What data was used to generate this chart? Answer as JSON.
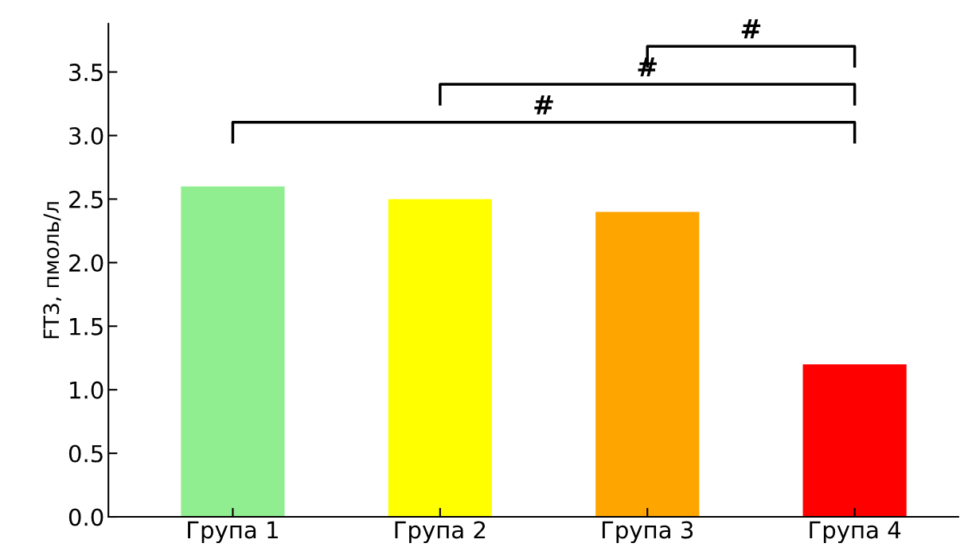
{
  "chart_data": {
    "type": "bar",
    "categories": [
      "Група 1",
      "Група 2",
      "Група 3",
      "Група 4"
    ],
    "values": [
      2.6,
      2.5,
      2.4,
      1.2
    ],
    "colors": [
      "#90ee90",
      "#ffff00",
      "#ffa500",
      "#ff0000"
    ],
    "ylabel": "FT3, пмоль/л",
    "ylim": [
      0,
      3.88
    ],
    "yticks": [
      {
        "value": 0,
        "label": "0.0"
      },
      0.5,
      {
        "value": 1,
        "label": "1.0"
      },
      1.5,
      {
        "value": 2,
        "label": "2.0"
      },
      2.5,
      {
        "value": 3,
        "label": "3.0"
      },
      3.5
    ],
    "annotations": [
      "#",
      "#",
      "#"
    ],
    "grid": false,
    "legend": false
  }
}
